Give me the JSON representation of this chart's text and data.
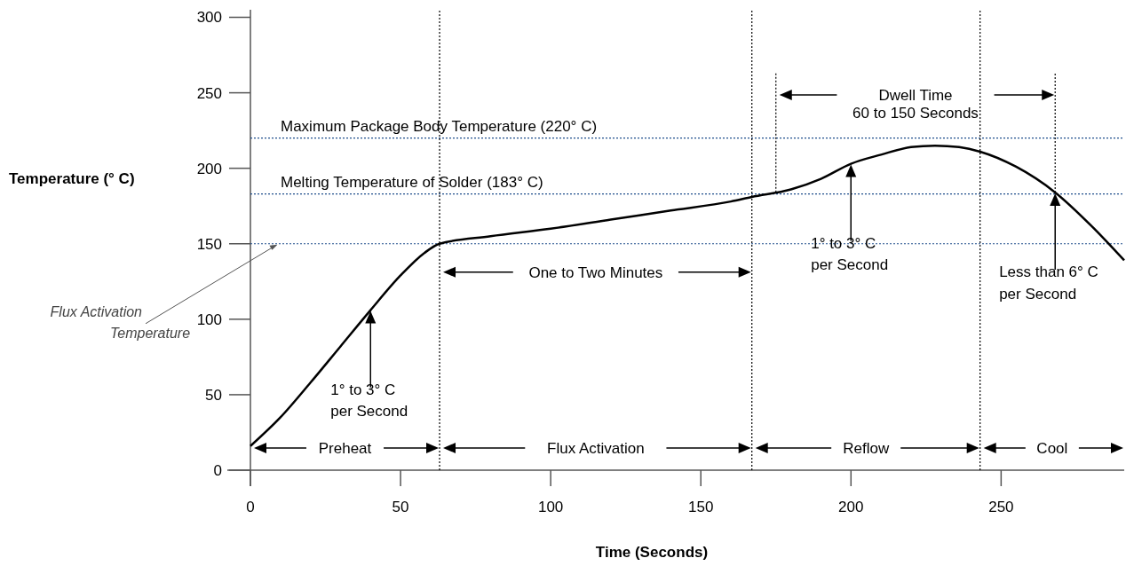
{
  "chart_data": {
    "type": "line",
    "xlabel": "Time (Seconds)",
    "ylabel": "Temperature (° C)",
    "x": [
      0,
      10,
      20,
      30,
      40,
      50,
      58,
      63,
      80,
      100,
      120,
      140,
      160,
      167,
      180,
      190,
      200,
      210,
      220,
      228,
      236,
      243,
      255,
      268,
      280,
      291
    ],
    "series": [
      {
        "color": "#000000",
        "values": [
          16,
          35,
          58,
          82,
          106,
          129,
          144,
          150,
          155,
          160,
          166,
          172,
          178,
          181,
          186,
          193,
          203,
          209,
          214,
          215,
          214,
          211,
          201,
          184,
          162,
          139
        ]
      }
    ],
    "xlim": [
      0,
      291
    ],
    "xticks": [
      0,
      50,
      100,
      150,
      200,
      250
    ],
    "ylim": [
      0,
      305
    ],
    "yticks": [
      0,
      50,
      100,
      150,
      200,
      250,
      300
    ],
    "ref_lines": [
      {
        "axis": "y",
        "value": 220,
        "label": "Maximum Package Body Temperature (220° C)",
        "color": "#1f4e8c",
        "line_style": "dotted"
      },
      {
        "axis": "y",
        "value": 183,
        "label": "Melting Temperature of Solder (183° C)",
        "color": "#1f4e8c",
        "line_style": "dotted"
      },
      {
        "axis": "y",
        "value": 150,
        "color": "#1f4e8c",
        "line_style": "dotted"
      },
      {
        "axis": "x",
        "value": 63,
        "color": "#000000",
        "line_style": "dotted"
      },
      {
        "axis": "x",
        "value": 167,
        "color": "#000000",
        "line_style": "dotted"
      },
      {
        "axis": "x",
        "value": 175,
        "color": "#000000",
        "line_style": "dotted"
      },
      {
        "axis": "x",
        "value": 243,
        "color": "#000000",
        "line_style": "dotted"
      },
      {
        "axis": "x",
        "value": 268,
        "color": "#000000",
        "line_style": "dotted"
      }
    ],
    "annotations": [
      {
        "text": "Flux Activation\nTemperature",
        "x": 9,
        "y": 150
      },
      "Preheat",
      "Flux Activation",
      "Reflow",
      "Cool",
      "One to Two Minutes",
      "Dwell Time\n60 to 150 Seconds",
      "1° to 3° C\nper Second",
      "1° to 3° C\nper Second",
      "Less than 6° C\nper Second"
    ]
  }
}
